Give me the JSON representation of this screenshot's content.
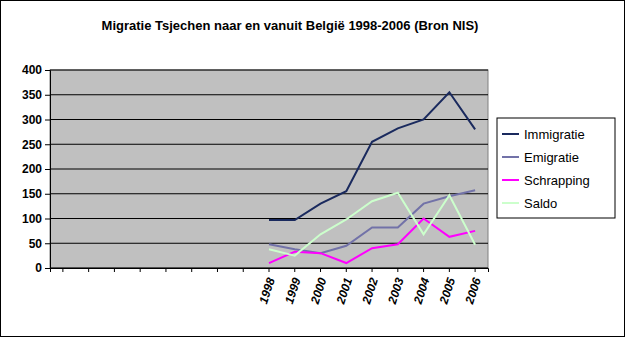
{
  "chart_data": {
    "type": "line",
    "title": "Migratie Tsjechen naar en vanuit België 1998-2006 (Bron NIS)",
    "categories": [
      null,
      null,
      null,
      null,
      null,
      null,
      null,
      null,
      "1998",
      "1999",
      "2000",
      "2001",
      "2002",
      "2003",
      "2004",
      "2005",
      "2006"
    ],
    "series": [
      {
        "name": "Immigratie",
        "color": "#1a2a5e",
        "values": [
          null,
          null,
          null,
          null,
          null,
          null,
          null,
          null,
          97,
          97,
          130,
          155,
          255,
          282,
          300,
          355,
          280
        ]
      },
      {
        "name": "Emigratie",
        "color": "#7272a8",
        "values": [
          null,
          null,
          null,
          null,
          null,
          null,
          null,
          null,
          48,
          38,
          30,
          45,
          82,
          82,
          130,
          145,
          157
        ]
      },
      {
        "name": "Schrapping",
        "color": "#ff00ff",
        "values": [
          null,
          null,
          null,
          null,
          null,
          null,
          null,
          null,
          10,
          33,
          30,
          10,
          40,
          48,
          100,
          63,
          75
        ]
      },
      {
        "name": "Saldo",
        "color": "#ccffcc",
        "values": [
          null,
          null,
          null,
          null,
          null,
          null,
          null,
          null,
          38,
          25,
          68,
          98,
          135,
          152,
          68,
          147,
          47
        ]
      }
    ],
    "ylim": [
      0,
      400
    ],
    "yticks": [
      0,
      50,
      100,
      150,
      200,
      250,
      300,
      350,
      400
    ],
    "grid": true,
    "legend": "right"
  }
}
